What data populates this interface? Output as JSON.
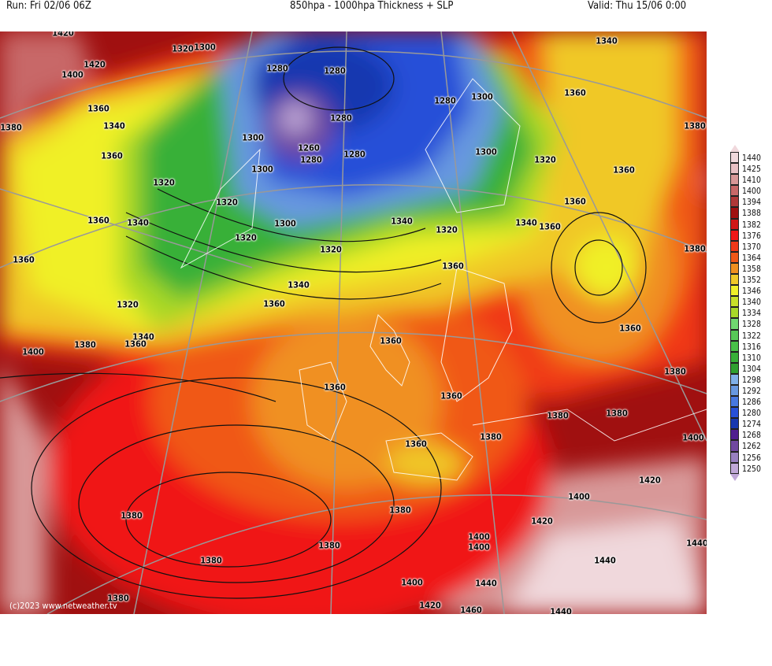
{
  "header": {
    "run": "Run: Fri 02/06 06Z",
    "title": "850hpa - 1000hpa Thickness + SLP",
    "valid": "Valid: Thu 15/06 0:00"
  },
  "watermark": "(c)2023 www.netweather.tv",
  "legend": {
    "labels": [
      "1440",
      "1425",
      "1410",
      "1400",
      "1394",
      "1388",
      "1382",
      "1376",
      "1370",
      "1364",
      "1358",
      "1352",
      "1346",
      "1340",
      "1334",
      "1328",
      "1322",
      "1316",
      "1310",
      "1304",
      "1298",
      "1292",
      "1286",
      "1280",
      "1274",
      "1268",
      "1262",
      "1256",
      "1250"
    ],
    "colors": [
      "#f0d8dc",
      "#e8c0c4",
      "#d89898",
      "#c86868",
      "#b03838",
      "#a01010",
      "#d01818",
      "#f01818",
      "#f03818",
      "#f05818",
      "#f09020",
      "#f0c828",
      "#f0f028",
      "#c8e028",
      "#a8d828",
      "#70d870",
      "#58c858",
      "#48c048",
      "#38b038",
      "#30a030",
      "#80b0e8",
      "#6898e0",
      "#4878e0",
      "#2850d8",
      "#1838b0",
      "#502090",
      "#7048a0",
      "#9880c0",
      "#c0a8d8"
    ]
  },
  "map": {
    "contour_labels": [
      "1420",
      "1420",
      "1400",
      "1360",
      "1380",
      "1340",
      "1360",
      "1320",
      "1300",
      "1280",
      "1280",
      "1300",
      "1280",
      "1260",
      "1280",
      "1280",
      "1300",
      "1320",
      "1320",
      "1360",
      "1340",
      "1300",
      "1340",
      "1320",
      "1340",
      "1360",
      "1320",
      "1320",
      "1360",
      "1340",
      "1360",
      "1360",
      "1320",
      "1340",
      "1380",
      "1360",
      "1400",
      "1360",
      "1360",
      "1360",
      "1380",
      "1380",
      "1380",
      "1400",
      "1380",
      "1360",
      "1420",
      "1380",
      "1400",
      "1420",
      "1380",
      "1380",
      "1400",
      "1400",
      "1380",
      "1440",
      "1440",
      "1400",
      "1440",
      "1380",
      "1420",
      "1460",
      "1440",
      "1300",
      "1280",
      "1300",
      "1320",
      "1340",
      "1360",
      "1380",
      "1360",
      "1360",
      "1380",
      "1360"
    ]
  }
}
